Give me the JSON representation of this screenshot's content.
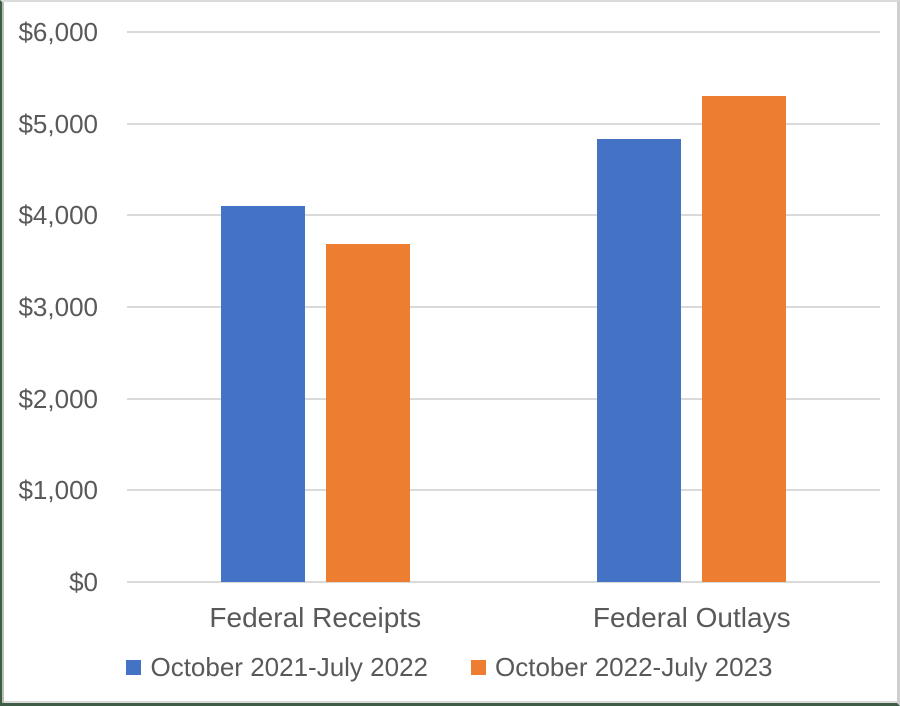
{
  "colors": {
    "series1": "#4472C4",
    "series2": "#ED7D31",
    "gridline": "#D9D9D9",
    "axis_line": "#D9D9D9",
    "text": "#595959",
    "frame_green": "#3F5D46",
    "frame_gray": "#CFCFCF"
  },
  "chart_data": {
    "type": "bar",
    "title": "",
    "xlabel": "",
    "ylabel": "",
    "categories": [
      "Federal Receipts",
      "Federal Outlays"
    ],
    "series": [
      {
        "name": "October 2021-July 2022",
        "color": "#4472C4",
        "values": [
          4100,
          4830
        ]
      },
      {
        "name": "October 2022-July 2023",
        "color": "#ED7D31",
        "values": [
          3690,
          5300
        ]
      }
    ],
    "ylim": [
      0,
      6000
    ],
    "ytick_step": 1000,
    "ytick_labels": [
      "$0",
      "$1,000",
      "$2,000",
      "$3,000",
      "$4,000",
      "$5,000",
      "$6,000"
    ],
    "grid": true,
    "legend_position": "bottom"
  }
}
